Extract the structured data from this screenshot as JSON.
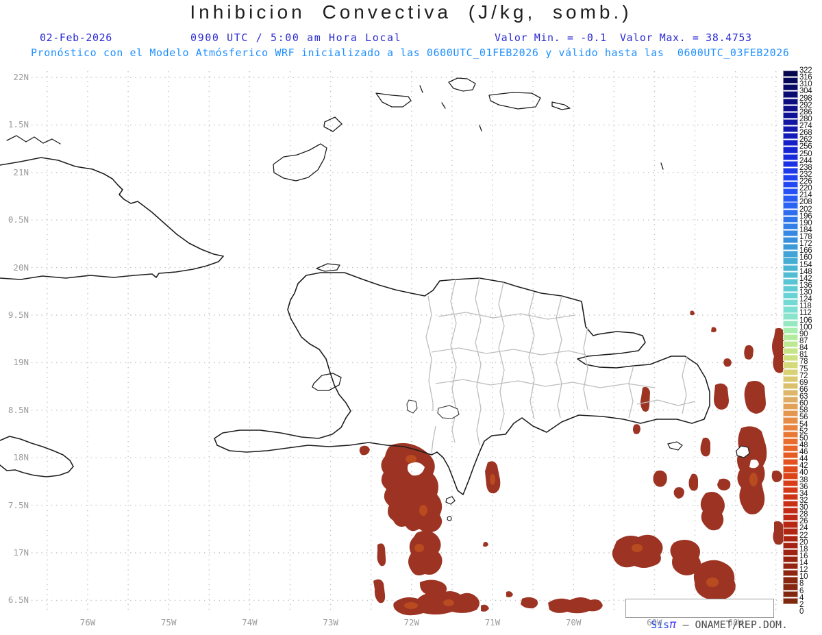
{
  "title": "Inhibicion Convectiva (J/kg, somb.)",
  "header": {
    "date": "02-Feb-2026",
    "time": "0900 UTC / 5:00 am Hora Local",
    "minmax": "Valor Min. = -0.1  Valor Max. = 38.4753",
    "forecast_line": "Pronóstico con el Modelo Atmósferico WRF inicializado a las 0600UTC_01FEB2026 y válido hasta las  0600UTC_03FEB2026"
  },
  "branding": {
    "prefix": "Sis",
    "pi": "π",
    "suffix": " – ONAMET/REP.DOM."
  },
  "colors": {
    "header_blue": "#2B2BD1",
    "forecast_blue": "#1E8FFF",
    "axis_gray": "#9a9a9a",
    "gridline": "#c2c2c2",
    "coastline": "#1d1d1d",
    "province_border": "#bdbdbd",
    "cin_shading_dark": "#9D3423",
    "cin_shading_light": "#C1511F"
  },
  "chart_data": {
    "type": "heatmap",
    "title": "Inhibicion Convectiva (J/kg, somb.)",
    "units": "J/kg",
    "valor_min": -0.1,
    "valor_max": 38.4753,
    "model_init": "0600UTC_01FEB2026",
    "model_valid_until": "0600UTC_03FEB2026",
    "lat_ticks": [
      "22N",
      "1.5N",
      "21N",
      "0.5N",
      "20N",
      "9.5N",
      "19N",
      "8.5N",
      "18N",
      "7.5N",
      "17N",
      "6.5N"
    ],
    "lon_ticks": [
      "76W",
      "75W",
      "74W",
      "73W",
      "72W",
      "71W",
      "70W",
      "69W",
      "68W"
    ],
    "legend_position": "right",
    "grid": "dotted",
    "colorbar": {
      "labels": [
        322,
        316,
        310,
        304,
        298,
        292,
        286,
        280,
        274,
        268,
        262,
        256,
        250,
        244,
        238,
        232,
        226,
        220,
        214,
        208,
        202,
        196,
        190,
        184,
        178,
        172,
        166,
        160,
        154,
        148,
        142,
        136,
        130,
        124,
        118,
        112,
        106,
        100,
        90,
        87,
        84,
        81,
        78,
        75,
        72,
        69,
        66,
        63,
        60,
        58,
        56,
        54,
        52,
        50,
        48,
        46,
        44,
        42,
        40,
        38,
        36,
        34,
        32,
        30,
        28,
        26,
        24,
        22,
        20,
        18,
        16,
        14,
        12,
        10,
        8,
        6,
        4,
        2,
        0
      ],
      "colors": [
        "#06064E",
        "#07075A",
        "#080966",
        "#0A0B72",
        "#0B0D7E",
        "#0D108A",
        "#0E1296",
        "#1015A2",
        "#1118AE",
        "#131CBA",
        "#1420C6",
        "#1625D2",
        "#182BDC",
        "#1A32E4",
        "#1C39EA",
        "#1F41EF",
        "#2149F2",
        "#2452F4",
        "#275BF4",
        "#2A64F2",
        "#2D6DEF",
        "#3076EB",
        "#337FE7",
        "#3688E2",
        "#3991DD",
        "#3D9AD9",
        "#41A3D6",
        "#45ACD4",
        "#4AB5D3",
        "#50BDD3",
        "#57C5D4",
        "#5FCCD5",
        "#68D3D5",
        "#72D9D4",
        "#7DDFD1",
        "#89E4CB",
        "#96E8C2",
        "#A8EEAE",
        "#B3EC9E",
        "#BDE992",
        "#C6E588",
        "#CEE080",
        "#D4DA7A",
        "#D8D275",
        "#DBC971",
        "#DDC06D",
        "#DEB669",
        "#DEAC64",
        "#E2A058",
        "#E5964E",
        "#E78C45",
        "#E8823C",
        "#E97834",
        "#E96E2D",
        "#E86427",
        "#E65B22",
        "#E3521E",
        "#E04A1B",
        "#DC4319",
        "#D83D18",
        "#D33817",
        "#CE3316",
        "#C92F15",
        "#C32C14",
        "#BD2914",
        "#B72713",
        "#B12513",
        "#AB2412",
        "#A52312",
        "#9F2311",
        "#992311",
        "#942311",
        "#8F2410",
        "#8A2510",
        "#852610",
        "#81270F",
        "#7D280F",
        "#FFFFFF"
      ]
    }
  }
}
